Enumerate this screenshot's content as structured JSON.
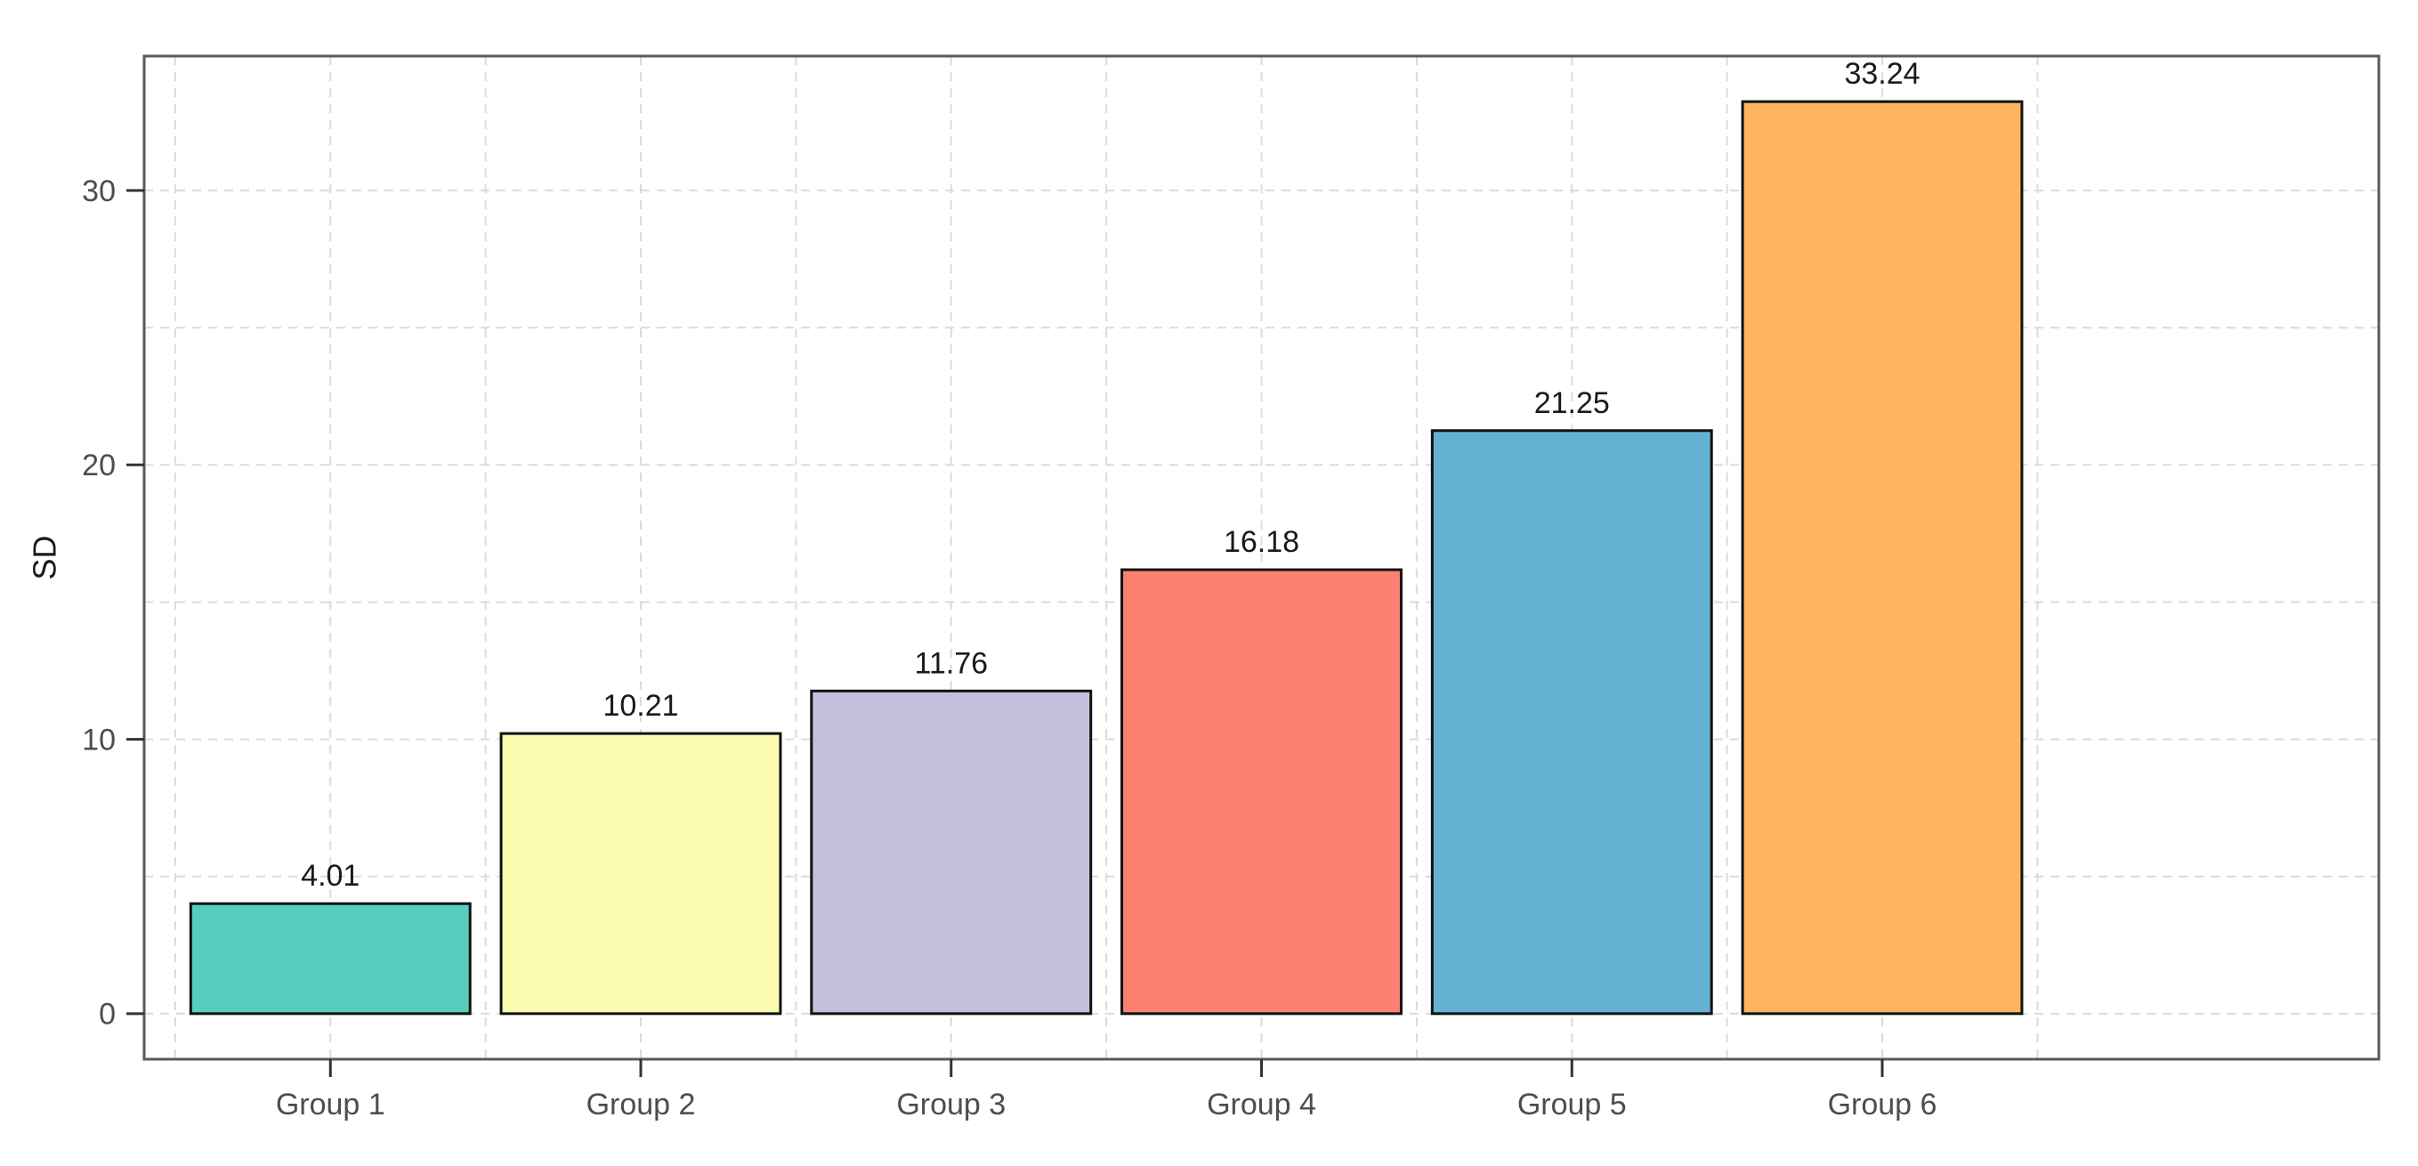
{
  "chart_data": {
    "type": "bar",
    "title": "",
    "xlabel": "",
    "ylabel": "SD",
    "categories": [
      "Group 1",
      "Group 2",
      "Group 3",
      "Group 4",
      "Group 5",
      "Group 6"
    ],
    "values": [
      4.01,
      10.21,
      11.76,
      16.18,
      21.25,
      33.24
    ],
    "value_labels": [
      "4.01",
      "10.21",
      "11.76",
      "16.18",
      "21.25",
      "33.24"
    ],
    "bar_colors": [
      "#58CDBE",
      "#FDFDB2",
      "#C2BFDD",
      "#FC8172",
      "#63B2D4",
      "#FEB45E"
    ],
    "bar_border_color": "#111111",
    "yticks": [
      0,
      10,
      20,
      30
    ],
    "ytick_labels": [
      "0",
      "10",
      "20",
      "30"
    ],
    "minor_yticks": [
      5,
      15,
      25
    ],
    "ylim": [
      -1.66,
      34.9
    ],
    "bar_width_fraction": 0.9,
    "grid": {
      "linestyle": "dashed",
      "color": "#DBDBDB",
      "horizontal": "major at yticks, minor at midpoints",
      "vertical": "major at category centers, minor at category boundaries"
    },
    "legend": "none",
    "panel_border_color": "#5A5A5A",
    "axis_tick_color": "#333333",
    "tick_label_color": "#4D4D4D",
    "value_label_color": "#1A1A1A",
    "background": "#FFFFFF"
  }
}
